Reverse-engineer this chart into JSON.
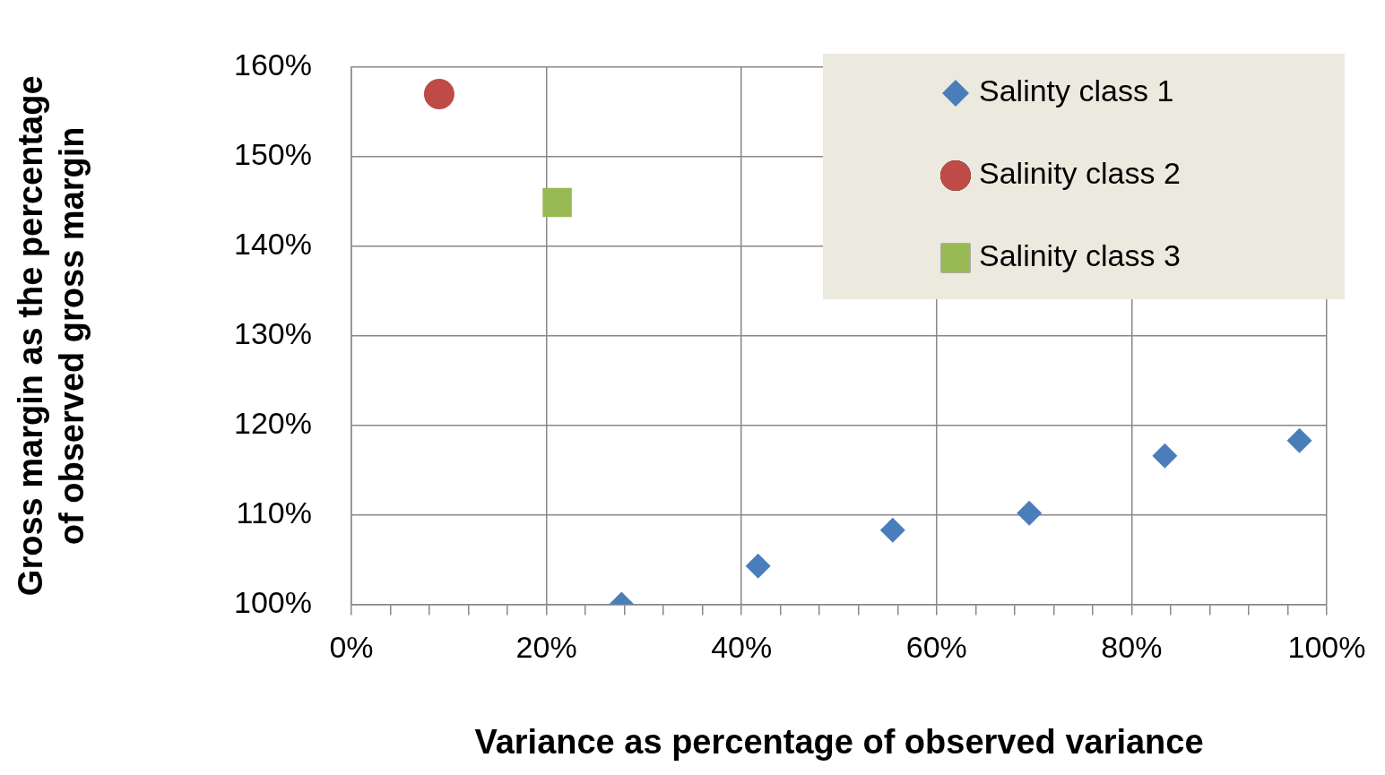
{
  "chart_data": {
    "type": "scatter",
    "xlabel": "Variance as percentage of observed variance",
    "ylabel": "Gross margin as the percentage\nof observed gross margin",
    "xlim": [
      0,
      100
    ],
    "xticks": [
      {
        "value": 0,
        "label": "0%"
      },
      {
        "value": 4,
        "label": null
      },
      {
        "value": 8,
        "label": null
      },
      {
        "value": 12,
        "label": null
      },
      {
        "value": 16,
        "label": null
      },
      {
        "value": 20,
        "label": "20%"
      },
      {
        "value": 24,
        "label": null
      },
      {
        "value": 28,
        "label": null
      },
      {
        "value": 32,
        "label": null
      },
      {
        "value": 36,
        "label": null
      },
      {
        "value": 40,
        "label": "40%"
      },
      {
        "value": 44,
        "label": null
      },
      {
        "value": 48,
        "label": null
      },
      {
        "value": 52,
        "label": null
      },
      {
        "value": 56,
        "label": null
      },
      {
        "value": 60,
        "label": "60%"
      },
      {
        "value": 64,
        "label": null
      },
      {
        "value": 68,
        "label": null
      },
      {
        "value": 72,
        "label": null
      },
      {
        "value": 76,
        "label": null
      },
      {
        "value": 80,
        "label": "80%"
      },
      {
        "value": 84,
        "label": null
      },
      {
        "value": 88,
        "label": null
      },
      {
        "value": 92,
        "label": null
      },
      {
        "value": 96,
        "label": null
      },
      {
        "value": 100,
        "label": "100%"
      }
    ],
    "ylim": [
      100,
      160
    ],
    "yticks": [
      {
        "value": 100,
        "label": "100%"
      },
      {
        "value": 110,
        "label": "110%"
      },
      {
        "value": 120,
        "label": "120%"
      },
      {
        "value": 130,
        "label": "130%"
      },
      {
        "value": 140,
        "label": "140%"
      },
      {
        "value": 150,
        "label": "150%"
      },
      {
        "value": 160,
        "label": "160%"
      }
    ],
    "grid": true,
    "legend": "top right",
    "series": [
      {
        "name": "Salinty class 1",
        "color": "#4a7ebb",
        "marker": "diamond",
        "x": [
          27.7,
          41.7,
          55.5,
          69.5,
          83.4,
          97.2
        ],
        "values": [
          100,
          104.3,
          108.3,
          110.2,
          116.6,
          118.3
        ]
      },
      {
        "name": "Salinity class 2",
        "color": "#be4b48",
        "marker": "circle",
        "x": [
          9.0
        ],
        "values": [
          157.0
        ]
      },
      {
        "name": "Salinity class 3",
        "color": "#98b954",
        "marker": "square",
        "x": [
          21.1
        ],
        "values": [
          144.9
        ]
      }
    ]
  }
}
